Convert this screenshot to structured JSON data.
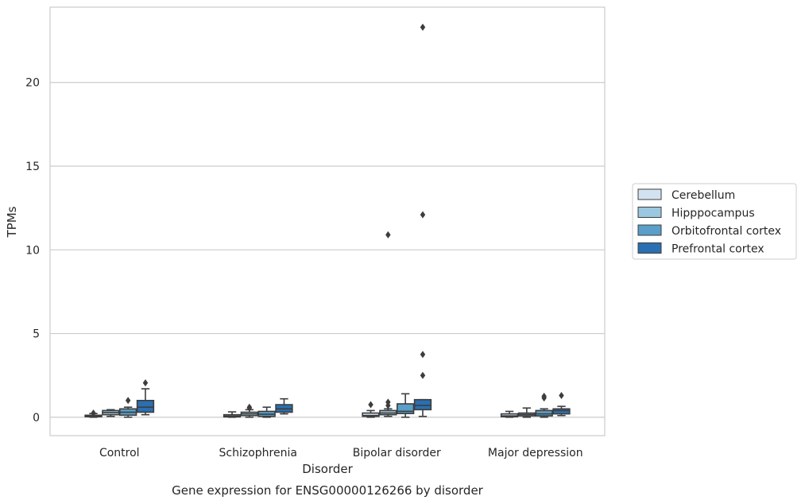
{
  "caption": "Gene expression for ENSG00000126266 by disorder",
  "chart_data": {
    "type": "box",
    "title": "",
    "xlabel": "Disorder",
    "ylabel": "TPMs",
    "ylim": [
      -1.1,
      24.5
    ],
    "yticks": [
      0,
      5,
      10,
      15,
      20
    ],
    "grid": "horizontal",
    "legend_position": "right",
    "categories": [
      "Control",
      "Schizophrenia",
      "Bipolar disorder",
      "Major depression"
    ],
    "series": [
      {
        "name": "Cerebellum",
        "color": "#d3e2f0",
        "boxes": [
          {
            "whislo": 0.0,
            "q1": 0.03,
            "med": 0.06,
            "q3": 0.12,
            "whishi": 0.22,
            "fliers": [
              0.25
            ]
          },
          {
            "whislo": 0.0,
            "q1": 0.02,
            "med": 0.07,
            "q3": 0.15,
            "whishi": 0.32,
            "fliers": []
          },
          {
            "whislo": 0.0,
            "q1": 0.05,
            "med": 0.1,
            "q3": 0.25,
            "whishi": 0.4,
            "fliers": [
              0.75
            ]
          },
          {
            "whislo": 0.0,
            "q1": 0.03,
            "med": 0.08,
            "q3": 0.2,
            "whishi": 0.35,
            "fliers": []
          }
        ]
      },
      {
        "name": "Hipppocampus",
        "color": "#9ac8e0",
        "boxes": [
          {
            "whislo": 0.05,
            "q1": 0.15,
            "med": 0.28,
            "q3": 0.4,
            "whishi": 0.45,
            "fliers": []
          },
          {
            "whislo": 0.0,
            "q1": 0.1,
            "med": 0.2,
            "q3": 0.3,
            "whishi": 0.45,
            "fliers": [
              0.55,
              0.6
            ]
          },
          {
            "whislo": 0.05,
            "q1": 0.15,
            "med": 0.25,
            "q3": 0.4,
            "whishi": 0.5,
            "fliers": [
              0.7,
              0.9,
              10.9
            ]
          },
          {
            "whislo": 0.0,
            "q1": 0.08,
            "med": 0.16,
            "q3": 0.25,
            "whishi": 0.55,
            "fliers": []
          }
        ]
      },
      {
        "name": "Orbitofrontal cortex",
        "color": "#5a9ec9",
        "boxes": [
          {
            "whislo": 0.0,
            "q1": 0.12,
            "med": 0.3,
            "q3": 0.5,
            "whishi": 0.6,
            "fliers": [
              1.0
            ]
          },
          {
            "whislo": 0.0,
            "q1": 0.05,
            "med": 0.18,
            "q3": 0.35,
            "whishi": 0.6,
            "fliers": []
          },
          {
            "whislo": 0.0,
            "q1": 0.22,
            "med": 0.35,
            "q3": 0.8,
            "whishi": 1.4,
            "fliers": []
          },
          {
            "whislo": 0.0,
            "q1": 0.08,
            "med": 0.2,
            "q3": 0.4,
            "whishi": 0.5,
            "fliers": [
              1.15,
              1.25
            ]
          }
        ]
      },
      {
        "name": "Prefrontal cortex",
        "color": "#2a6fb1",
        "boxes": [
          {
            "whislo": 0.15,
            "q1": 0.3,
            "med": 0.6,
            "q3": 1.0,
            "whishi": 1.7,
            "fliers": [
              2.05
            ]
          },
          {
            "whislo": 0.2,
            "q1": 0.3,
            "med": 0.5,
            "q3": 0.75,
            "whishi": 1.1,
            "fliers": []
          },
          {
            "whislo": 0.05,
            "q1": 0.45,
            "med": 0.7,
            "q3": 1.05,
            "whishi": 1.05,
            "fliers": [
              2.5,
              3.75,
              12.1,
              23.3
            ]
          },
          {
            "whislo": 0.1,
            "q1": 0.2,
            "med": 0.4,
            "q3": 0.5,
            "whishi": 0.65,
            "fliers": [
              1.3
            ]
          }
        ]
      }
    ]
  }
}
